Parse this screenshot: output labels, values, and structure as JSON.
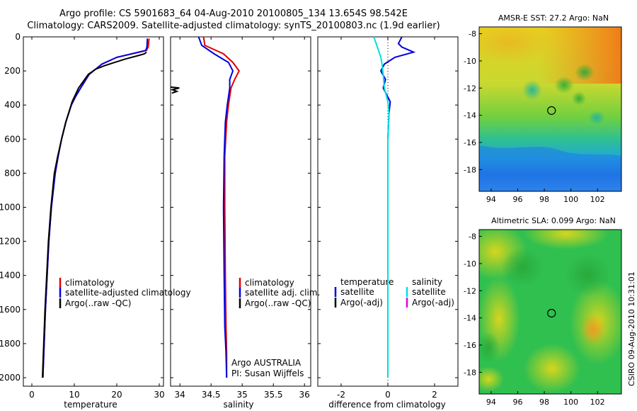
{
  "header": {
    "line1": "Argo profile: CS 5901683_64 04-Aug-2010 20100805_134 13.654S 98.542E",
    "line2": "Climatology: CARS2009. Satellite-adjusted climatology: synTS_20100803.nc (1.9d earlier)"
  },
  "stamp": "CSIRO 09-Aug-2010 10:31:01",
  "colors": {
    "climatology": "#e00000",
    "satellite": "#0000e0",
    "argo": "#000000",
    "sat_salinity": "#00e0e0",
    "argo_salinity": "#e000e0"
  },
  "chart_data": [
    {
      "type": "line",
      "id": "temperature",
      "xlabel": "temperature",
      "ylabel": "",
      "xlim": [
        -2,
        31
      ],
      "ylim": [
        2050,
        0
      ],
      "xticks": [
        0,
        10,
        20,
        30
      ],
      "yticks": [
        0,
        200,
        400,
        600,
        800,
        1000,
        1200,
        1400,
        1600,
        1800,
        2000
      ],
      "legend": [
        "climatology",
        "satellite-adjusted climatology",
        "Argo(..raw -QC)"
      ],
      "series": [
        {
          "name": "climatology",
          "x": [
            27.6,
            27.4,
            27.0,
            20.0,
            16.5,
            13.5,
            11.5,
            10.3,
            9.3,
            8.0,
            7.0,
            6.2,
            5.5,
            4.6,
            4.0,
            3.6,
            3.2,
            2.9,
            2.6
          ],
          "y": [
            10,
            60,
            80,
            120,
            160,
            220,
            300,
            350,
            400,
            500,
            600,
            700,
            800,
            1000,
            1200,
            1400,
            1600,
            1800,
            2000
          ]
        },
        {
          "name": "satellite-adjusted climatology",
          "x": [
            27.2,
            27.1,
            26.8,
            20.0,
            16.5,
            13.5,
            11.5,
            10.3,
            9.3,
            8.0,
            7.0,
            6.2,
            5.5,
            4.6,
            4.0,
            3.6,
            3.2,
            2.9,
            2.6
          ],
          "y": [
            10,
            60,
            80,
            120,
            160,
            220,
            300,
            350,
            400,
            500,
            600,
            700,
            800,
            1000,
            1200,
            1400,
            1600,
            1800,
            2000
          ]
        },
        {
          "name": "Argo(..raw -QC)",
          "x": [
            27.0,
            26.5,
            25.0,
            22.0,
            19.5,
            17.0,
            15.0,
            13.3,
            11.0,
            9.5,
            8.0,
            7.0,
            6.1,
            5.3,
            4.5,
            3.9,
            3.5,
            3.1,
            2.8,
            2.5
          ],
          "y": [
            90,
            100,
            110,
            130,
            150,
            170,
            190,
            220,
            300,
            380,
            500,
            600,
            700,
            800,
            1000,
            1200,
            1400,
            1600,
            1800,
            2000
          ]
        }
      ]
    },
    {
      "type": "line",
      "id": "salinity",
      "xlabel": "salinity",
      "ylabel": "",
      "xlim": [
        33.85,
        36.1
      ],
      "ylim": [
        2050,
        0
      ],
      "xticks": [
        34,
        34.5,
        35,
        35.5,
        36
      ],
      "legend": [
        "climatology",
        "satellite adj. clim.",
        "Argo(..raw -QC)"
      ],
      "annotations": [
        "Argo AUSTRALIA",
        "PI: Susan Wijffels"
      ],
      "series": [
        {
          "name": "climatology",
          "x": [
            34.38,
            34.4,
            34.7,
            34.85,
            34.95,
            34.88,
            34.82,
            34.78,
            34.75,
            34.72,
            34.72,
            34.73,
            34.74,
            34.75,
            34.75
          ],
          "y": [
            0,
            50,
            100,
            150,
            200,
            250,
            300,
            400,
            500,
            700,
            1000,
            1400,
            1700,
            1850,
            2000
          ]
        },
        {
          "name": "satellite adj. clim.",
          "x": [
            34.3,
            34.35,
            34.55,
            34.78,
            34.85,
            34.8,
            34.8,
            34.76,
            34.73,
            34.71,
            34.7,
            34.71,
            34.72,
            34.74,
            34.75
          ],
          "y": [
            0,
            50,
            100,
            150,
            200,
            250,
            300,
            400,
            500,
            700,
            1000,
            1400,
            1700,
            1850,
            2000
          ]
        },
        {
          "name": "Argo(..raw -QC)",
          "x": [
            33.85,
            33.99,
            33.88,
            33.95,
            33.87
          ],
          "y": [
            295,
            300,
            310,
            320,
            330
          ]
        }
      ]
    },
    {
      "type": "line",
      "id": "difference",
      "xlabel": "difference from climatology",
      "ylabel": "",
      "xlim": [
        -3,
        3
      ],
      "ylim": [
        2050,
        0
      ],
      "xticks": [
        -2,
        0,
        2
      ],
      "legend": [
        "temperature",
        "satellite",
        "Argo(-adj)",
        "salinity",
        "satellite",
        "Argo(-adj)"
      ],
      "series": [
        {
          "name": "satellite",
          "x": [
            0.6,
            0.45,
            0.6,
            1.1,
            0.3,
            -0.15,
            -0.3,
            -0.1,
            -0.2,
            0.1,
            0.05,
            0.0,
            0.0,
            0.0,
            0.0
          ],
          "y": [
            0,
            40,
            60,
            90,
            120,
            160,
            200,
            250,
            300,
            380,
            450,
            600,
            1000,
            1500,
            2000
          ]
        },
        {
          "name": "satellite",
          "x": [
            -0.6,
            -0.5,
            -0.4,
            -0.3,
            -0.25,
            -0.2,
            -0.15,
            0.0,
            0.05,
            0.0,
            0.0,
            0.0
          ],
          "y": [
            0,
            40,
            80,
            120,
            160,
            220,
            300,
            380,
            450,
            600,
            1200,
            2000
          ]
        }
      ]
    },
    {
      "type": "heatmap",
      "id": "amsre-sst",
      "title": "AMSR-E SST: 27.2 Argo: NaN",
      "xticks": [
        94,
        96,
        98,
        100,
        102
      ],
      "yticks": [
        -8,
        -10,
        -12,
        -14,
        -16,
        -18
      ],
      "xlim": [
        93.1,
        103.8
      ],
      "ylim": [
        -19.6,
        -7.5
      ],
      "marker": {
        "lon": 98.542,
        "lat": -13.654
      }
    },
    {
      "type": "heatmap",
      "id": "altimetric-sla",
      "title": "Altimetric SLA: 0.099 Argo: NaN",
      "xticks": [
        94,
        96,
        98,
        100,
        102
      ],
      "yticks": [
        -8,
        -10,
        -12,
        -14,
        -16,
        -18
      ],
      "xlim": [
        93.1,
        103.8
      ],
      "ylim": [
        -19.6,
        -7.5
      ],
      "marker": {
        "lon": 98.542,
        "lat": -13.654
      }
    }
  ]
}
